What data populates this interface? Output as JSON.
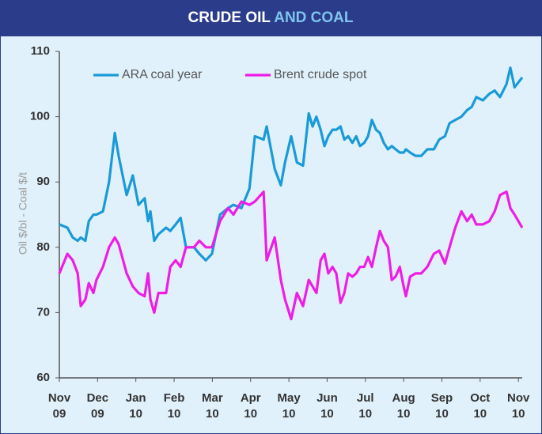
{
  "chart_data": {
    "type": "line",
    "title": "CRUDE OIL",
    "title_highlight": "AND COAL",
    "y_label": "Oil $/bl - Coal $/t",
    "x": [
      0,
      0.21,
      0.35,
      0.48,
      0.56,
      0.68,
      0.77,
      0.89,
      0.97,
      1.14,
      1.3,
      1.45,
      1.55,
      1.76,
      1.92,
      2.07,
      2.23,
      2.32,
      2.38,
      2.48,
      2.59,
      2.79,
      2.9,
      3.04,
      3.17,
      3.31,
      3.52,
      3.66,
      3.83,
      3.99,
      4.2,
      4.41,
      4.55,
      4.76,
      4.97,
      5.11,
      5.34,
      5.42,
      5.63,
      5.79,
      5.9,
      6.06,
      6.21,
      6.37,
      6.52,
      6.62,
      6.72,
      6.83,
      6.93,
      7.03,
      7.14,
      7.24,
      7.35,
      7.45,
      7.55,
      7.66,
      7.76,
      7.86,
      7.97,
      8.07,
      8.17,
      8.28,
      8.38,
      8.48,
      8.59,
      8.69,
      8.79,
      8.9,
      9.0,
      9.06,
      9.17,
      9.31,
      9.46,
      9.62,
      9.79,
      9.93,
      10.08,
      10.2,
      10.35,
      10.51,
      10.66,
      10.78,
      10.9,
      11.07,
      11.24,
      11.38,
      11.52,
      11.69,
      11.79,
      11.9,
      12.1
    ],
    "series": [
      {
        "name": "ARA coal year",
        "color": "#1a9ad6",
        "values": [
          83.5,
          83,
          81.5,
          81,
          81.5,
          81,
          84,
          85,
          85,
          85.5,
          90,
          97.5,
          94,
          88,
          91,
          86.5,
          87.5,
          84,
          85.5,
          81,
          82,
          83,
          82.5,
          83.5,
          84.5,
          80,
          80,
          79,
          78,
          79,
          85,
          86,
          86.5,
          86,
          89,
          97,
          96.5,
          98.5,
          92,
          89.5,
          93,
          97,
          93,
          92.5,
          100.5,
          98.5,
          100,
          98,
          95.5,
          97,
          98,
          98,
          98.5,
          96.5,
          97,
          96,
          97,
          95.5,
          96,
          97,
          99.5,
          98,
          97.5,
          96,
          95,
          95.5,
          95,
          94.5,
          94.5,
          95,
          94.5,
          94,
          94,
          95,
          95,
          96.5,
          97,
          99,
          99.5,
          100,
          101,
          101.5,
          103,
          102.5,
          103.5,
          104,
          103,
          105,
          107.5,
          104.5,
          106
        ]
      },
      {
        "name": "Brent crude spot",
        "color": "#ee1de6",
        "values": [
          76,
          79,
          78,
          76,
          71,
          72,
          74.5,
          73,
          75,
          77,
          80,
          81.5,
          80.5,
          76,
          74,
          73,
          72.5,
          76,
          72,
          70,
          73,
          73,
          77,
          78,
          77,
          80,
          80,
          81,
          80,
          80,
          84,
          86,
          85,
          87,
          86.5,
          87,
          88.5,
          78,
          81.5,
          75,
          72,
          69,
          73,
          71,
          75,
          74,
          73,
          78,
          79,
          76,
          77,
          76,
          71.5,
          73,
          76,
          75.5,
          76,
          77,
          77,
          78.5,
          77,
          80,
          82.5,
          81,
          80,
          75,
          75.5,
          77,
          74,
          72.5,
          75.5,
          76,
          76,
          77,
          79,
          79.5,
          77.5,
          80,
          83,
          85.5,
          84,
          85,
          83.5,
          83.5,
          84,
          85.5,
          88,
          88.5,
          86,
          85,
          83
        ]
      }
    ],
    "xlim": [
      0,
      12.1
    ],
    "xticks": [
      {
        "value": 0,
        "label": "Nov 09"
      },
      {
        "value": 1,
        "label": "Dec 09"
      },
      {
        "value": 2,
        "label": "Jan 10"
      },
      {
        "value": 3,
        "label": "Feb 10"
      },
      {
        "value": 4,
        "label": "Mar 10"
      },
      {
        "value": 5,
        "label": "Apr 10"
      },
      {
        "value": 6,
        "label": "May 10"
      },
      {
        "value": 7,
        "label": "Jun 10"
      },
      {
        "value": 8,
        "label": "Jul 10"
      },
      {
        "value": 9,
        "label": "Aug 10"
      },
      {
        "value": 10,
        "label": "Sep 10"
      },
      {
        "value": 11,
        "label": "Oct 10"
      },
      {
        "value": 12,
        "label": "Nov 10"
      }
    ],
    "ylim": [
      60,
      110
    ],
    "yticks": [
      60,
      70,
      80,
      90,
      100,
      110
    ],
    "grid": false,
    "legend": "top-left"
  }
}
